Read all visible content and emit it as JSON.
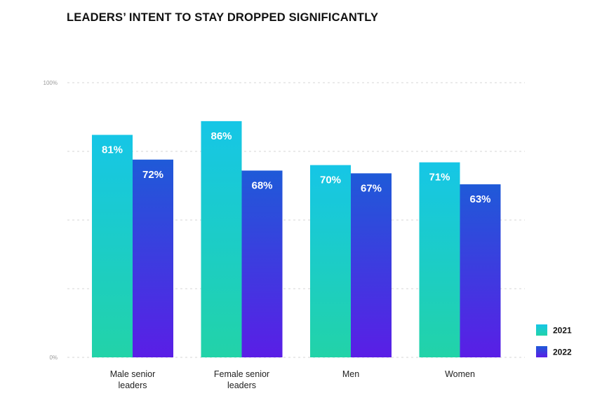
{
  "colors": {
    "series_2021_top": "#16c6e6",
    "series_2021_bottom": "#22d3a8",
    "series_2022_top": "#1f5ad8",
    "series_2022_bottom": "#5a1ee6"
  },
  "chart_data": {
    "type": "bar",
    "title": "LEADERS’ INTENT TO STAY DROPPED SIGNIFICANTLY",
    "categories": [
      [
        "Male senior",
        "leaders"
      ],
      [
        "Female senior",
        "leaders"
      ],
      [
        "Men"
      ],
      [
        "Women"
      ]
    ],
    "series": [
      {
        "name": "2021",
        "values": [
          81,
          86,
          70,
          71
        ],
        "labels": [
          "81%",
          "86%",
          "70%",
          "71%"
        ]
      },
      {
        "name": "2022",
        "values": [
          72,
          68,
          67,
          63
        ],
        "labels": [
          "72%",
          "68%",
          "67%",
          "63%"
        ]
      }
    ],
    "ylim": [
      0,
      100
    ],
    "y_ticks": [
      {
        "value": 0,
        "label": "0%"
      },
      {
        "value": 25,
        "label": ""
      },
      {
        "value": 50,
        "label": ""
      },
      {
        "value": 75,
        "label": ""
      },
      {
        "value": 100,
        "label": "100%"
      }
    ],
    "xlabel": "",
    "ylabel": "",
    "grid": true,
    "legend_position": "bottom-right"
  }
}
